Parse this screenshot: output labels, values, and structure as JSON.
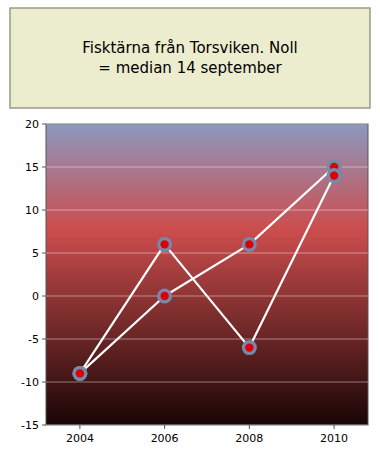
{
  "chart_data": {
    "type": "line",
    "title": "Fisktärna från Torsviken. Noll\n= median 14 september",
    "x": [
      2004,
      2006,
      2008,
      2010
    ],
    "series": [
      {
        "color": "#ffffff",
        "marker": "circle",
        "values": [
          -9,
          0,
          6,
          15
        ]
      },
      {
        "color": "#ffffff",
        "marker": "circle",
        "values": [
          -9,
          6,
          -6,
          14
        ]
      }
    ],
    "xlim": [
      2003.2,
      2010.8
    ],
    "xticks": [
      2004,
      2006,
      2008,
      2010
    ],
    "ylim": [
      -15,
      20
    ],
    "yticks": [
      -15,
      -10,
      -5,
      0,
      5,
      10,
      15,
      20
    ],
    "grid": true
  }
}
